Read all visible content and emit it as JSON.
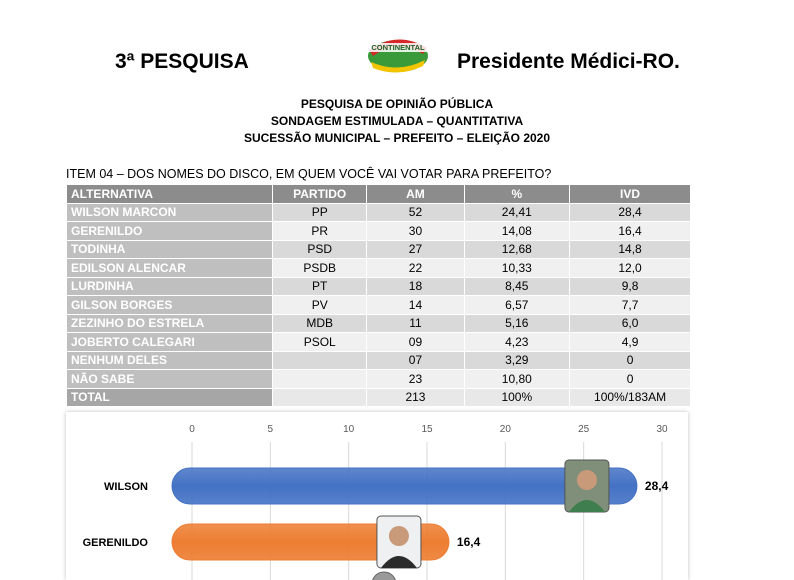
{
  "header": {
    "left_title": "3ª PESQUISA",
    "right_title": "Presidente Médici-RO.",
    "logo_text": "CONTINENTAL"
  },
  "titles": [
    "PESQUISA DE OPINIÃO PÚBLICA",
    "SONDAGEM ESTIMULADA – QUANTITATIVA",
    "SUCESSÃO MUNICIPAL – PREFEITO – ELEIÇÃO 2020"
  ],
  "question": "ITEM 04 – DOS NOMES DO DISCO, EM QUEM VOCÊ VAI VOTAR PARA PREFEITO?",
  "table": {
    "headers": [
      "ALTERNATIVA",
      "PARTIDO",
      "AM",
      "%",
      "IVD"
    ],
    "rows": [
      {
        "name": "WILSON MARCON",
        "partido": "PP",
        "am": "52",
        "pct": "24,41",
        "ivd": "28,4"
      },
      {
        "name": "GERENILDO",
        "partido": "PR",
        "am": "30",
        "pct": "14,08",
        "ivd": "16,4"
      },
      {
        "name": "TODINHA",
        "partido": "PSD",
        "am": "27",
        "pct": "12,68",
        "ivd": "14,8"
      },
      {
        "name": "EDILSON ALENCAR",
        "partido": "PSDB",
        "am": "22",
        "pct": "10,33",
        "ivd": "12,0"
      },
      {
        "name": "LURDINHA",
        "partido": "PT",
        "am": "18",
        "pct": "8,45",
        "ivd": "9,8"
      },
      {
        "name": "GILSON BORGES",
        "partido": "PV",
        "am": "14",
        "pct": "6,57",
        "ivd": "7,7"
      },
      {
        "name": "ZEZINHO DO ESTRELA",
        "partido": "MDB",
        "am": "11",
        "pct": "5,16",
        "ivd": "6,0"
      },
      {
        "name": "JOBERTO CALEGARI",
        "partido": "PSOL",
        "am": "09",
        "pct": "4,23",
        "ivd": "4,9"
      },
      {
        "name": "NENHUM DELES",
        "partido": "",
        "am": "07",
        "pct": "3,29",
        "ivd": "0"
      },
      {
        "name": "NÃO SABE",
        "partido": "",
        "am": "23",
        "pct": "10,80",
        "ivd": "0"
      }
    ],
    "total": {
      "name": "TOTAL",
      "partido": "",
      "am": "213",
      "pct": "100%",
      "ivd": "100%/183AM"
    }
  },
  "chart_data": {
    "type": "bar",
    "orientation": "horizontal",
    "categories": [
      "WILSON",
      "GERENILDO"
    ],
    "values": [
      28.4,
      16.4
    ],
    "value_labels": [
      "28,4",
      "16,4"
    ],
    "ticks": [
      "0",
      "5",
      "10",
      "15",
      "20",
      "25",
      "30"
    ],
    "xlim": [
      0,
      30
    ],
    "colors": [
      "#4472c4",
      "#ed7d31"
    ],
    "grid": true
  }
}
